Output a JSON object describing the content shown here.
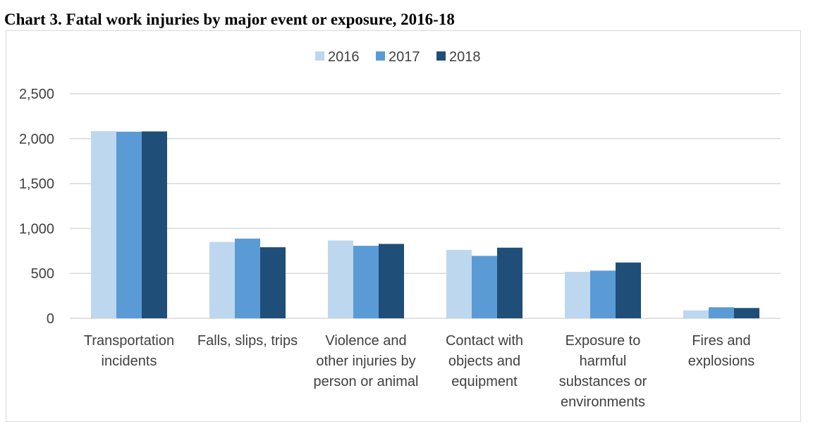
{
  "chart_data": {
    "type": "bar",
    "title": "Chart 3. Fatal work injuries by major event or exposure, 2016-18",
    "xlabel": "",
    "ylabel": "",
    "ylim": [
      0,
      2500
    ],
    "yticks": [
      0,
      500,
      1000,
      1500,
      2000,
      2500
    ],
    "ytick_labels": [
      "0",
      "500",
      "1,000",
      "1,500",
      "2,000",
      "2,500"
    ],
    "grid": true,
    "legend_position": "top-center",
    "categories": [
      [
        "Transportation",
        "incidents"
      ],
      [
        "Falls, slips, trips"
      ],
      [
        "Violence and",
        "other injuries by",
        "person or animal"
      ],
      [
        "Contact with",
        "objects and",
        "equipment"
      ],
      [
        "Exposure to",
        "harmful",
        "substances or",
        "environments"
      ],
      [
        "Fires and",
        "explosions"
      ]
    ],
    "series": [
      {
        "name": "2016",
        "color": "#bdd7ee",
        "values": [
          2083,
          849,
          866,
          761,
          518,
          88
        ]
      },
      {
        "name": "2017",
        "color": "#5b9bd5",
        "values": [
          2077,
          887,
          807,
          695,
          531,
          123
        ]
      },
      {
        "name": "2018",
        "color": "#1f4e79",
        "values": [
          2080,
          791,
          828,
          786,
          621,
          115
        ]
      }
    ],
    "gridline_color": "#d9d9d9"
  }
}
